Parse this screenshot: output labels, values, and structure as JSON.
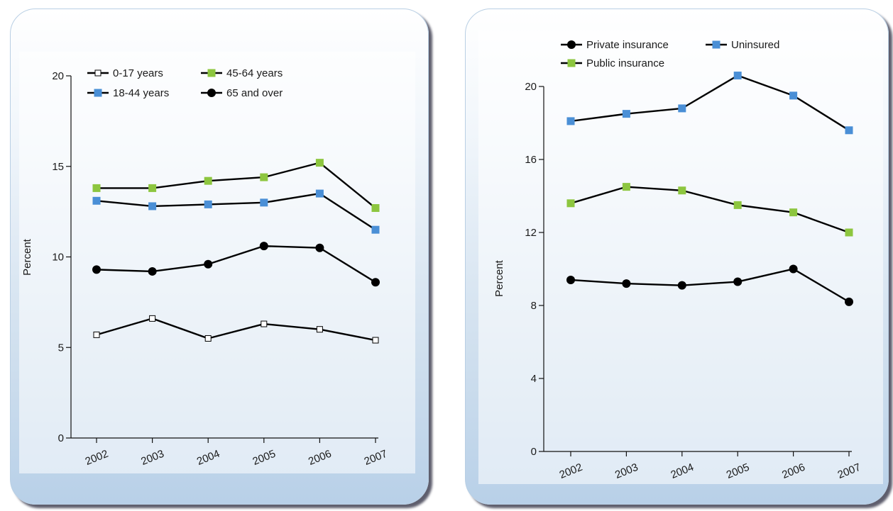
{
  "chart_data": [
    {
      "type": "line",
      "title": "",
      "xlabel": "",
      "ylabel": "Percent",
      "ylim": [
        0,
        20
      ],
      "yticks": [
        0,
        5,
        10,
        15,
        20
      ],
      "categories": [
        "2002",
        "2003",
        "2004",
        "2005",
        "2006",
        "2007"
      ],
      "legend_position": "top",
      "series": [
        {
          "name": "0-17 years",
          "color": "#ffffff",
          "marker": "square-open",
          "values": [
            5.7,
            6.6,
            5.5,
            6.3,
            6.0,
            5.4
          ]
        },
        {
          "name": "45-64 years",
          "color": "#8dc63f",
          "marker": "square",
          "values": [
            13.8,
            13.8,
            14.2,
            14.4,
            15.2,
            12.7
          ]
        },
        {
          "name": "18-44 years",
          "color": "#4a8fd6",
          "marker": "square",
          "values": [
            13.1,
            12.8,
            12.9,
            13.0,
            13.5,
            11.5
          ]
        },
        {
          "name": "65 and over",
          "color": "#000000",
          "marker": "circle",
          "values": [
            9.3,
            9.2,
            9.6,
            10.6,
            10.5,
            8.6
          ]
        }
      ]
    },
    {
      "type": "line",
      "title": "",
      "xlabel": "",
      "ylabel": "Percent",
      "ylim": [
        0,
        20
      ],
      "yticks": [
        0,
        4,
        8,
        12,
        16,
        20
      ],
      "categories": [
        "2002",
        "2003",
        "2004",
        "2005",
        "2006",
        "2007"
      ],
      "legend_position": "top",
      "series": [
        {
          "name": "Private insurance",
          "color": "#000000",
          "marker": "circle",
          "values": [
            9.4,
            9.2,
            9.1,
            9.3,
            10.0,
            8.2
          ]
        },
        {
          "name": "Uninsured",
          "color": "#4a8fd6",
          "marker": "square",
          "values": [
            18.1,
            18.5,
            18.8,
            20.6,
            19.5,
            17.6
          ]
        },
        {
          "name": "Public insurance",
          "color": "#8dc63f",
          "marker": "square",
          "values": [
            13.6,
            14.5,
            14.3,
            13.5,
            13.1,
            12.0
          ]
        }
      ]
    }
  ]
}
